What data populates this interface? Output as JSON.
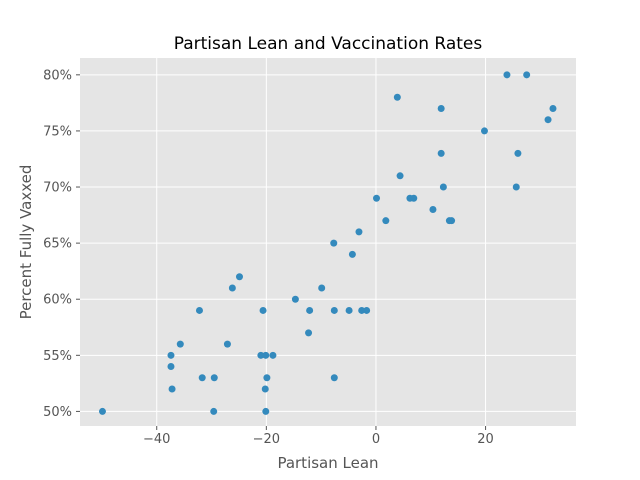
{
  "chart_data": {
    "type": "scatter",
    "title": "Partisan Lean and Vaccination Rates",
    "xlabel": "Partisan Lean",
    "ylabel": "Percent Fully Vaxxed",
    "xlim": [
      -54,
      36.5
    ],
    "ylim": [
      48.7,
      81.5
    ],
    "xticks": [
      {
        "value": -40,
        "label": "−40"
      },
      {
        "value": -20,
        "label": "−20"
      },
      {
        "value": 0,
        "label": "0"
      },
      {
        "value": 20,
        "label": "20"
      }
    ],
    "yticks": [
      {
        "value": 50,
        "label": "50%"
      },
      {
        "value": 55,
        "label": "55%"
      },
      {
        "value": 60,
        "label": "60%"
      },
      {
        "value": 65,
        "label": "65%"
      },
      {
        "value": 70,
        "label": "70%"
      },
      {
        "value": 75,
        "label": "75%"
      },
      {
        "value": 80,
        "label": "80%"
      }
    ],
    "grid": true,
    "style": {
      "background": "#e5e5e5",
      "point_color": "#348abd",
      "grid_color": "#ffffff"
    },
    "points": [
      {
        "x": -49.9,
        "y": 50
      },
      {
        "x": -37.4,
        "y": 55
      },
      {
        "x": -37.4,
        "y": 54
      },
      {
        "x": -37.2,
        "y": 52
      },
      {
        "x": -35.7,
        "y": 56
      },
      {
        "x": -32.2,
        "y": 59
      },
      {
        "x": -31.7,
        "y": 53
      },
      {
        "x": -29.5,
        "y": 53
      },
      {
        "x": -29.6,
        "y": 50
      },
      {
        "x": -27.1,
        "y": 56
      },
      {
        "x": -26.2,
        "y": 61
      },
      {
        "x": -24.9,
        "y": 62
      },
      {
        "x": -21.0,
        "y": 55
      },
      {
        "x": -20.6,
        "y": 59
      },
      {
        "x": -20.2,
        "y": 52
      },
      {
        "x": -20.1,
        "y": 55
      },
      {
        "x": -19.9,
        "y": 53
      },
      {
        "x": -20.1,
        "y": 50
      },
      {
        "x": -18.8,
        "y": 55
      },
      {
        "x": -14.7,
        "y": 60
      },
      {
        "x": -12.3,
        "y": 57
      },
      {
        "x": -12.1,
        "y": 59
      },
      {
        "x": -9.9,
        "y": 61
      },
      {
        "x": -7.7,
        "y": 65
      },
      {
        "x": -7.6,
        "y": 59
      },
      {
        "x": -7.6,
        "y": 53
      },
      {
        "x": -4.9,
        "y": 59
      },
      {
        "x": -4.3,
        "y": 64
      },
      {
        "x": -3.1,
        "y": 66
      },
      {
        "x": -2.6,
        "y": 59
      },
      {
        "x": -1.7,
        "y": 59
      },
      {
        "x": 0.1,
        "y": 69
      },
      {
        "x": 1.8,
        "y": 67
      },
      {
        "x": 3.9,
        "y": 78
      },
      {
        "x": 4.4,
        "y": 71
      },
      {
        "x": 6.2,
        "y": 69
      },
      {
        "x": 6.9,
        "y": 69
      },
      {
        "x": 10.4,
        "y": 68
      },
      {
        "x": 11.9,
        "y": 77
      },
      {
        "x": 11.9,
        "y": 73
      },
      {
        "x": 12.3,
        "y": 70
      },
      {
        "x": 13.4,
        "y": 67
      },
      {
        "x": 13.8,
        "y": 67
      },
      {
        "x": 19.8,
        "y": 75
      },
      {
        "x": 23.9,
        "y": 80
      },
      {
        "x": 25.6,
        "y": 70
      },
      {
        "x": 25.9,
        "y": 73
      },
      {
        "x": 27.5,
        "y": 80
      },
      {
        "x": 31.4,
        "y": 76
      },
      {
        "x": 32.3,
        "y": 77
      }
    ]
  }
}
